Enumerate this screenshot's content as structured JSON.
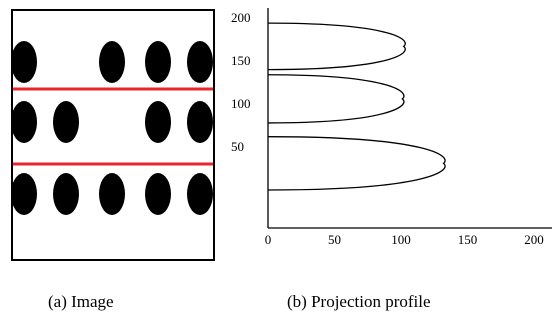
{
  "panel_a": {
    "caption": "(a) Image",
    "rows": [
      {
        "dots": [
          true,
          false,
          false,
          true,
          true,
          true
        ]
      },
      {
        "dots": [
          true,
          true,
          false,
          false,
          true,
          true
        ]
      },
      {
        "dots": [
          true,
          true,
          true,
          true,
          true,
          true
        ]
      }
    ],
    "separator_color": "#e8262b"
  },
  "panel_b": {
    "caption": "(b) Projection profile",
    "chart_data": {
      "type": "line",
      "x_ticks": [
        "0",
        "50",
        "100",
        "150",
        "200"
      ],
      "y_ticks": [
        "50",
        "100",
        "150",
        "200"
      ],
      "xlim": [
        0,
        210
      ],
      "ylim": [
        -20,
        200
      ],
      "lobes": [
        {
          "y_min": 140,
          "y_max": 194,
          "peak_x": 102
        },
        {
          "y_min": 78,
          "y_max": 134,
          "peak_x": 101
        },
        {
          "y_min": 0,
          "y_max": 62,
          "peak_x": 132
        }
      ]
    }
  }
}
